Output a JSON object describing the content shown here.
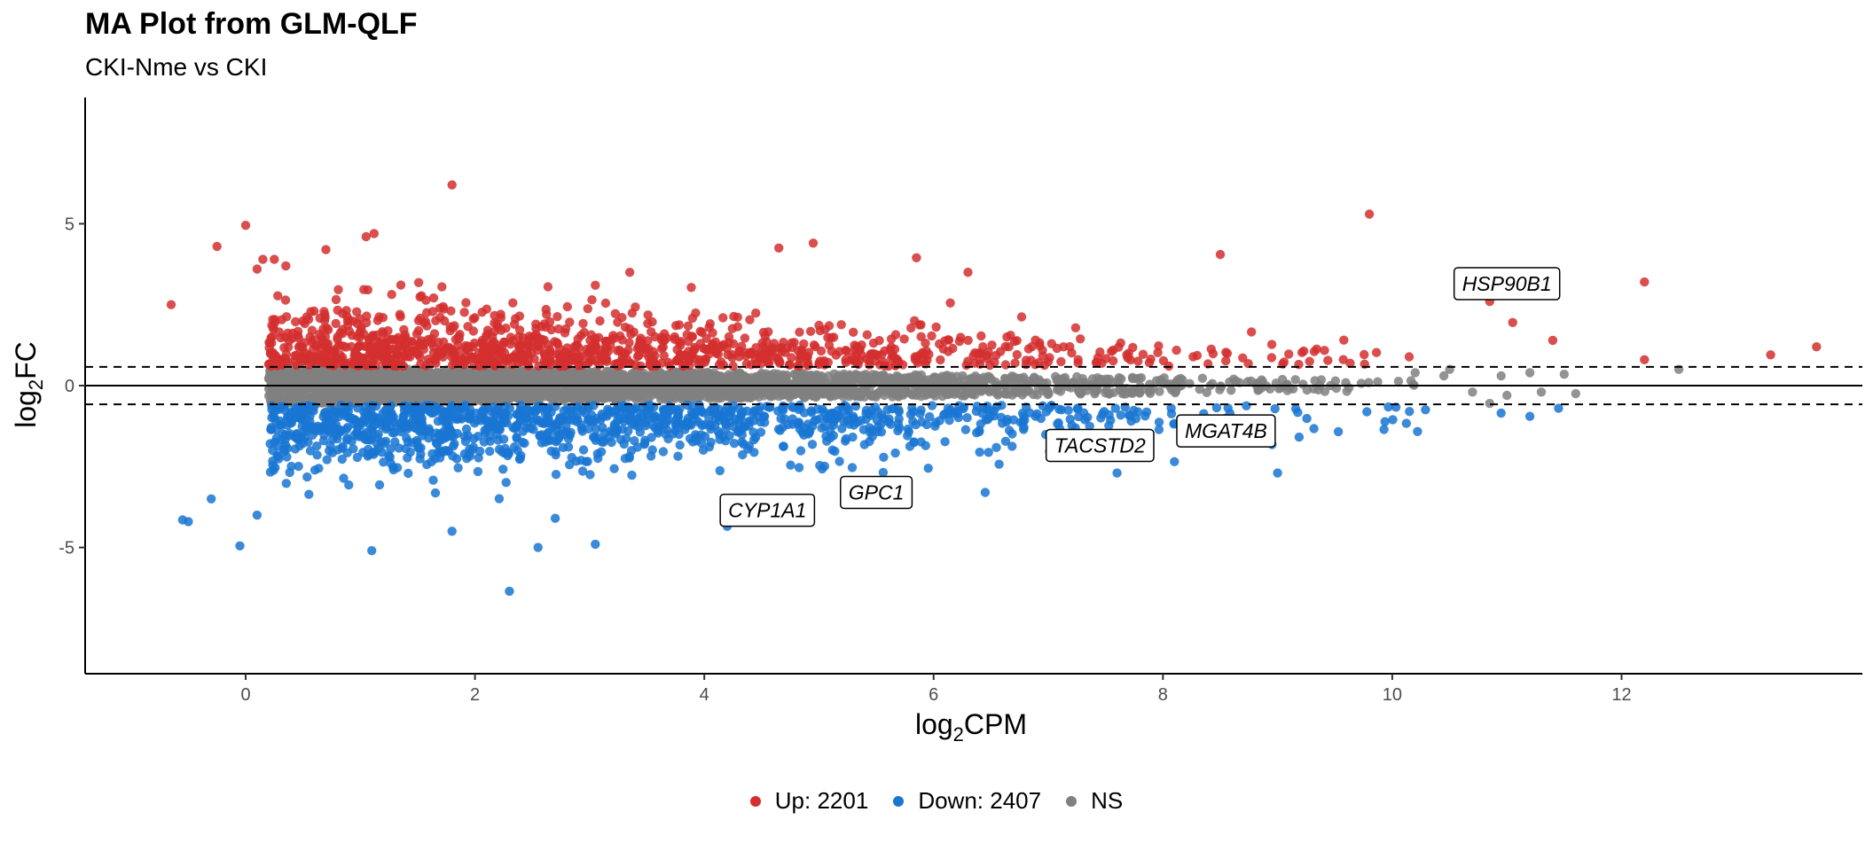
{
  "chart_data": {
    "type": "scatter",
    "title": "MA Plot from GLM-QLF",
    "subtitle": "CKI-Nme vs CKI",
    "xlabel_base": "log",
    "xlabel_sub": "2",
    "xlabel_rest": "CPM",
    "ylabel_base": "log",
    "ylabel_sub": "2",
    "ylabel_rest": "FC",
    "xlim": [
      -1.4,
      14.1
    ],
    "ylim": [
      -8.9,
      8.9
    ],
    "x_ticks": [
      0,
      2,
      4,
      6,
      8,
      10,
      12
    ],
    "x_tick_labels": [
      "0",
      "2",
      "4",
      "6",
      "8",
      "10",
      "12"
    ],
    "y_ticks": [
      -5,
      0,
      5
    ],
    "y_tick_labels": [
      "-5",
      "0",
      "5"
    ],
    "reference_lines": {
      "solid": [
        0
      ],
      "dashed": [
        0.58,
        -0.58
      ]
    },
    "grid": false,
    "legend_position": "bottom",
    "series": [
      {
        "name": "Up: 2201",
        "key": "up",
        "color": "#d32f2f",
        "count": 2201,
        "highlight_points": [
          [
            -0.65,
            2.5
          ],
          [
            -0.25,
            4.3
          ],
          [
            0.0,
            4.95
          ],
          [
            0.1,
            3.6
          ],
          [
            0.15,
            3.9
          ],
          [
            0.25,
            3.9
          ],
          [
            0.35,
            3.7
          ],
          [
            0.7,
            4.2
          ],
          [
            1.05,
            4.6
          ],
          [
            1.12,
            4.7
          ],
          [
            1.8,
            6.2
          ],
          [
            3.05,
            3.1
          ],
          [
            3.35,
            3.5
          ],
          [
            4.65,
            4.25
          ],
          [
            4.95,
            4.4
          ],
          [
            5.85,
            3.95
          ],
          [
            6.3,
            3.5
          ],
          [
            8.5,
            4.05
          ],
          [
            9.8,
            5.3
          ],
          [
            10.85,
            2.6
          ],
          [
            11.05,
            1.95
          ],
          [
            11.4,
            1.4
          ],
          [
            12.2,
            3.2
          ],
          [
            12.2,
            0.8
          ],
          [
            13.3,
            0.95
          ],
          [
            13.7,
            1.2
          ]
        ]
      },
      {
        "name": "Down: 2407",
        "key": "down",
        "color": "#1976d2",
        "count": 2407,
        "highlight_points": [
          [
            -0.55,
            -4.15
          ],
          [
            -0.5,
            -4.2
          ],
          [
            -0.3,
            -3.5
          ],
          [
            -0.05,
            -4.95
          ],
          [
            0.1,
            -4.0
          ],
          [
            1.1,
            -5.1
          ],
          [
            2.3,
            -6.35
          ],
          [
            2.55,
            -5.0
          ],
          [
            3.05,
            -4.9
          ],
          [
            4.2,
            -4.35
          ],
          [
            1.8,
            -4.5
          ],
          [
            2.7,
            -4.1
          ],
          [
            6.45,
            -3.3
          ],
          [
            7.6,
            -2.7
          ],
          [
            8.1,
            -2.35
          ],
          [
            9.0,
            -2.7
          ],
          [
            10.15,
            -0.8
          ],
          [
            10.95,
            -0.85
          ],
          [
            11.2,
            -0.95
          ],
          [
            11.45,
            -0.7
          ]
        ]
      },
      {
        "name": "NS",
        "key": "ns",
        "color": "#808080",
        "count": null,
        "highlight_points": [
          [
            10.2,
            0.4
          ],
          [
            10.45,
            0.3
          ],
          [
            10.5,
            0.5
          ],
          [
            10.7,
            -0.2
          ],
          [
            10.95,
            0.3
          ],
          [
            11.2,
            0.4
          ],
          [
            11.3,
            -0.2
          ],
          [
            11.5,
            0.35
          ],
          [
            12.5,
            0.5
          ],
          [
            11.0,
            -0.3
          ],
          [
            10.85,
            -0.55
          ],
          [
            11.6,
            -0.25
          ]
        ]
      }
    ],
    "annotations": [
      {
        "label": "HSP90B1",
        "x": 11.0,
        "y": 3.15
      },
      {
        "label": "TACSTD2",
        "x": 7.45,
        "y": -1.85
      },
      {
        "label": "MGAT4B",
        "x": 8.55,
        "y": -1.4
      },
      {
        "label": "GPC1",
        "x": 5.5,
        "y": -3.3
      },
      {
        "label": "CYP1A1",
        "x": 4.55,
        "y": -3.85
      }
    ]
  },
  "legend": {
    "up_label": "Up: 2201",
    "down_label": "Down: 2407",
    "ns_label": "NS"
  }
}
